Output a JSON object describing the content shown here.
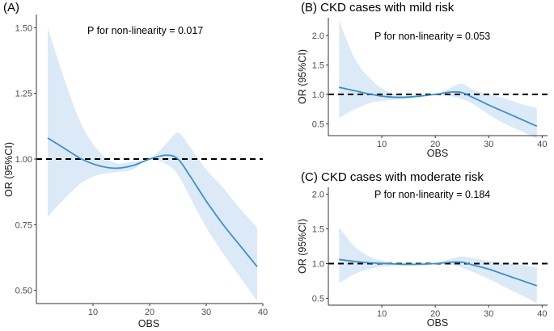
{
  "colors": {
    "line": "#3c8fc9",
    "band": "#dce9f7",
    "ref": "#000000",
    "axis": "#333333"
  },
  "chart_data": [
    {
      "type": "line",
      "title": "(A)",
      "annotation": "P for non-linearity = 0.017",
      "xlabel": "OBS",
      "ylabel": "OR (95%CI)",
      "xlim": [
        0,
        40
      ],
      "ylim": [
        0.45,
        1.55
      ],
      "xticks": [
        10,
        20,
        30,
        40
      ],
      "xtick_labels": [
        "10",
        "20",
        "30",
        "40"
      ],
      "yticks": [
        0.5,
        0.75,
        1.0,
        1.25,
        1.5
      ],
      "ytick_labels": [
        "0.50",
        "0.75",
        "1.00",
        "1.25",
        "1.50"
      ],
      "reference_line": 1.0,
      "series": [
        {
          "name": "OR",
          "x": [
            2,
            5,
            8,
            11,
            14,
            17,
            20,
            23,
            25,
            27,
            30,
            33,
            36,
            39
          ],
          "y": [
            1.08,
            1.04,
            1.0,
            0.975,
            0.965,
            0.975,
            1.0,
            1.015,
            1.0,
            0.94,
            0.84,
            0.75,
            0.67,
            0.59
          ],
          "lower": [
            0.78,
            0.85,
            0.91,
            0.94,
            0.95,
            0.96,
            1.0,
            0.98,
            0.94,
            0.86,
            0.74,
            0.64,
            0.55,
            0.46
          ],
          "upper": [
            1.5,
            1.3,
            1.13,
            1.03,
            0.985,
            0.99,
            1.0,
            1.06,
            1.1,
            1.05,
            0.96,
            0.89,
            0.81,
            0.74
          ]
        }
      ]
    },
    {
      "type": "line",
      "title": "(B) CKD cases with mild risk",
      "annotation": "P for non-linearity = 0.053",
      "xlabel": "OBS",
      "ylabel": "OR (95%CI)",
      "xlim": [
        0,
        41
      ],
      "ylim": [
        0.3,
        2.3
      ],
      "xticks": [
        10,
        20,
        30,
        40
      ],
      "xtick_labels": [
        "10",
        "20",
        "30",
        "40"
      ],
      "yticks": [
        0.5,
        1.0,
        1.5,
        2.0
      ],
      "ytick_labels": [
        "0.5",
        "1.0",
        "1.5",
        "2.0"
      ],
      "reference_line": 1.0,
      "series": [
        {
          "name": "OR",
          "x": [
            2,
            5,
            8,
            11,
            14,
            17,
            20,
            23,
            25,
            27,
            30,
            33,
            36,
            39
          ],
          "y": [
            1.12,
            1.06,
            1.0,
            0.96,
            0.95,
            0.97,
            1.0,
            1.04,
            1.03,
            0.95,
            0.82,
            0.7,
            0.58,
            0.46
          ],
          "lower": [
            0.6,
            0.75,
            0.86,
            0.9,
            0.92,
            0.95,
            1.0,
            0.97,
            0.92,
            0.84,
            0.66,
            0.5,
            0.38,
            0.25
          ],
          "upper": [
            2.25,
            1.6,
            1.25,
            1.05,
            0.98,
            0.99,
            1.0,
            1.12,
            1.18,
            1.08,
            1.0,
            0.93,
            0.84,
            0.77
          ]
        }
      ]
    },
    {
      "type": "line",
      "title": "(C) CKD cases with moderate risk",
      "annotation": "P for non-linearity = 0.184",
      "xlabel": "OBS",
      "ylabel": "OR (95%CI)",
      "xlim": [
        0,
        41
      ],
      "ylim": [
        0.4,
        2.1
      ],
      "xticks": [
        10,
        20,
        30,
        40
      ],
      "xtick_labels": [
        "10",
        "20",
        "30",
        "40"
      ],
      "yticks": [
        0.5,
        1.0,
        1.5,
        2.0
      ],
      "ytick_labels": [
        "0.5",
        "1.0",
        "1.5",
        "2.0"
      ],
      "reference_line": 1.0,
      "series": [
        {
          "name": "OR",
          "x": [
            2,
            5,
            8,
            11,
            14,
            17,
            20,
            23,
            25,
            27,
            30,
            33,
            36,
            39
          ],
          "y": [
            1.06,
            1.03,
            1.01,
            1.0,
            0.99,
            0.99,
            1.0,
            1.02,
            1.02,
            0.98,
            0.92,
            0.84,
            0.76,
            0.68
          ],
          "lower": [
            0.72,
            0.85,
            0.93,
            0.96,
            0.97,
            0.98,
            1.0,
            0.98,
            0.94,
            0.88,
            0.78,
            0.66,
            0.55,
            0.43
          ],
          "upper": [
            1.52,
            1.24,
            1.09,
            1.03,
            1.0,
            1.0,
            1.0,
            1.07,
            1.1,
            1.08,
            1.04,
            1.01,
            0.98,
            0.95
          ]
        }
      ]
    }
  ]
}
